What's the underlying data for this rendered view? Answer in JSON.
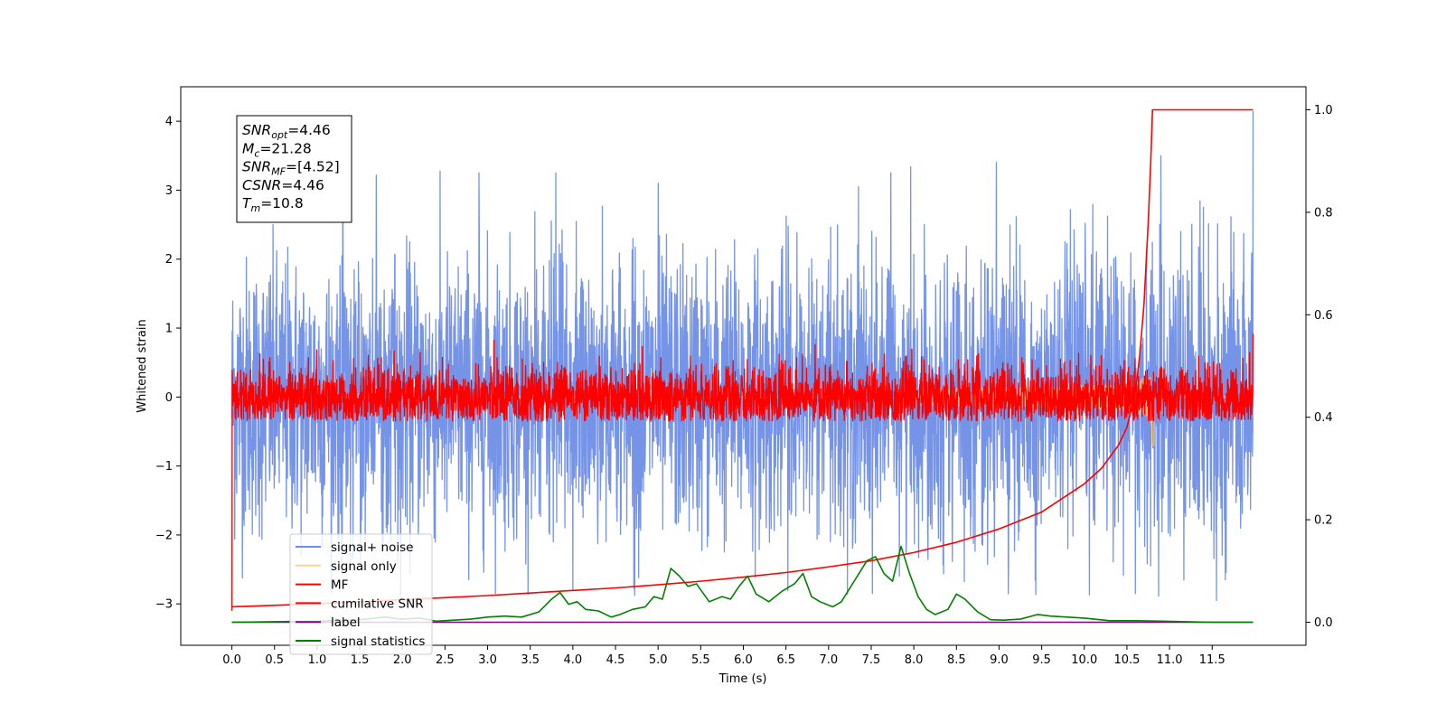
{
  "chart_data": {
    "type": "line",
    "xlabel": "Time (s)",
    "ylabel_left": "Whitened strain",
    "ylabel_right": "",
    "xlim": [
      -0.6,
      12.6
    ],
    "ylim_left": [
      -3.6,
      4.5
    ],
    "ylim_right": [
      -0.045,
      1.045
    ],
    "x_ticks": [
      "0.0",
      "0.5",
      "1.0",
      "1.5",
      "2.0",
      "2.5",
      "3.0",
      "3.5",
      "4.0",
      "4.5",
      "5.0",
      "5.5",
      "6.0",
      "6.5",
      "7.0",
      "7.5",
      "8.0",
      "8.5",
      "9.0",
      "9.5",
      "10.0",
      "10.5",
      "11.0",
      "11.5"
    ],
    "y_ticks_left": [
      "−3",
      "−2",
      "−1",
      "0",
      "1",
      "2",
      "3",
      "4"
    ],
    "y_ticks_right": [
      "0.0",
      "0.2",
      "0.4",
      "0.6",
      "0.8",
      "1.0"
    ],
    "grid": false,
    "legend_position": "lower-left",
    "series": [
      {
        "name": "signal+ noise",
        "axis": "left",
        "color": "#6f8ee6",
        "style": "noise",
        "x_range": [
          0,
          11.98
        ],
        "mean": 0.0,
        "std": 1.0,
        "range": [
          -2.9,
          4.2
        ],
        "spikes": [
          {
            "x": 2.9,
            "y": 3.25
          },
          {
            "x": 3.8,
            "y": 3.25
          },
          {
            "x": 5.0,
            "y": 3.1
          },
          {
            "x": 7.35,
            "y": 3.05
          },
          {
            "x": 10.9,
            "y": 3.5
          },
          {
            "x": 11.98,
            "y": 4.15
          },
          {
            "x": 4.0,
            "y": -2.8
          },
          {
            "x": 10.6,
            "y": -2.85
          },
          {
            "x": 11.55,
            "y": -2.95
          }
        ]
      },
      {
        "name": "signal only",
        "axis": "left",
        "color": "#f5c46a",
        "style": "chirp",
        "x_range": [
          0,
          11.98
        ],
        "peak_time": 10.8,
        "peak_amplitude": -0.7
      },
      {
        "name": "MF",
        "axis": "left",
        "color": "#ff0000",
        "style": "noise",
        "x_range": [
          0,
          11.98
        ],
        "mean": 0.0,
        "std": 0.23,
        "range": [
          -0.35,
          0.95
        ],
        "spikes": [
          {
            "x": 0.0,
            "y": 1.0
          },
          {
            "x": 0.0,
            "y": -3.1
          },
          {
            "x": 11.98,
            "y": 0.92
          }
        ]
      },
      {
        "name": "cumilative SNR",
        "axis": "right",
        "color": "#ff0000",
        "style": "line",
        "x": [
          0.0,
          0.5,
          1.0,
          1.5,
          2.0,
          2.5,
          3.0,
          3.5,
          4.0,
          4.5,
          5.0,
          5.5,
          6.0,
          6.5,
          7.0,
          7.5,
          8.0,
          8.5,
          9.0,
          9.5,
          10.0,
          10.2,
          10.4,
          10.5,
          10.6,
          10.65,
          10.7,
          10.75,
          10.78,
          10.8,
          11.0,
          11.98
        ],
        "y": [
          0.03,
          0.033,
          0.036,
          0.04,
          0.044,
          0.048,
          0.052,
          0.057,
          0.062,
          0.067,
          0.073,
          0.08,
          0.088,
          0.097,
          0.108,
          0.12,
          0.136,
          0.156,
          0.182,
          0.215,
          0.27,
          0.3,
          0.345,
          0.38,
          0.45,
          0.52,
          0.62,
          0.78,
          0.9,
          1.0,
          1.0,
          1.0
        ]
      },
      {
        "name": "label",
        "axis": "right",
        "color": "#800080",
        "style": "line",
        "x": [
          0.0,
          11.98
        ],
        "y": [
          0.0,
          0.0
        ]
      },
      {
        "name": "signal statistics",
        "axis": "right",
        "color": "#008000",
        "style": "line",
        "x": [
          0.0,
          0.5,
          1.0,
          1.5,
          1.8,
          2.0,
          2.2,
          2.4,
          2.6,
          2.8,
          3.0,
          3.2,
          3.4,
          3.6,
          3.75,
          3.85,
          3.95,
          4.05,
          4.15,
          4.3,
          4.45,
          4.55,
          4.7,
          4.85,
          4.95,
          5.05,
          5.15,
          5.25,
          5.35,
          5.45,
          5.6,
          5.75,
          5.85,
          5.95,
          6.05,
          6.15,
          6.3,
          6.45,
          6.6,
          6.7,
          6.8,
          6.9,
          7.05,
          7.15,
          7.3,
          7.45,
          7.55,
          7.65,
          7.75,
          7.85,
          7.95,
          8.05,
          8.15,
          8.25,
          8.4,
          8.5,
          8.6,
          8.75,
          8.9,
          9.05,
          9.25,
          9.45,
          9.6,
          9.8,
          10.0,
          10.3,
          10.6,
          10.9,
          11.2,
          11.5,
          11.98
        ],
        "y": [
          0.0,
          0.001,
          0.002,
          0.005,
          0.01,
          0.006,
          0.008,
          0.002,
          0.004,
          0.006,
          0.01,
          0.012,
          0.01,
          0.02,
          0.045,
          0.058,
          0.035,
          0.04,
          0.025,
          0.022,
          0.01,
          0.015,
          0.025,
          0.03,
          0.05,
          0.045,
          0.105,
          0.09,
          0.07,
          0.075,
          0.04,
          0.05,
          0.045,
          0.07,
          0.09,
          0.055,
          0.04,
          0.06,
          0.075,
          0.095,
          0.05,
          0.04,
          0.03,
          0.04,
          0.08,
          0.12,
          0.128,
          0.095,
          0.08,
          0.148,
          0.095,
          0.05,
          0.025,
          0.015,
          0.025,
          0.055,
          0.045,
          0.02,
          0.005,
          0.004,
          0.006,
          0.015,
          0.012,
          0.01,
          0.008,
          0.003,
          0.003,
          0.002,
          0.001,
          0.0,
          0.0
        ]
      }
    ]
  },
  "info_box": {
    "lines": [
      {
        "main": "SNR",
        "sub": "opt",
        "value": "=4.46"
      },
      {
        "main": "M",
        "sub": "c",
        "value": "=21.28"
      },
      {
        "main": "SNR",
        "sub": "MF",
        "value": "=[4.52]"
      },
      {
        "main": "CSNR",
        "sub": "",
        "value": "=4.46"
      },
      {
        "main": "T",
        "sub": "m",
        "value": "=10.8"
      }
    ]
  }
}
